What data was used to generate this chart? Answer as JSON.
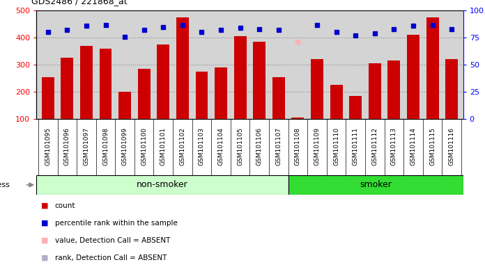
{
  "title": "GDS2486 / 221868_at",
  "samples": [
    "GSM101095",
    "GSM101096",
    "GSM101097",
    "GSM101098",
    "GSM101099",
    "GSM101100",
    "GSM101101",
    "GSM101102",
    "GSM101103",
    "GSM101104",
    "GSM101105",
    "GSM101106",
    "GSM101107",
    "GSM101108",
    "GSM101109",
    "GSM101110",
    "GSM101111",
    "GSM101112",
    "GSM101113",
    "GSM101114",
    "GSM101115",
    "GSM101116"
  ],
  "counts": [
    255,
    325,
    370,
    360,
    200,
    285,
    375,
    475,
    275,
    290,
    405,
    385,
    255,
    105,
    320,
    225,
    185,
    305,
    315,
    410,
    475,
    320
  ],
  "percentile_ranks": [
    80,
    82,
    86,
    87,
    76,
    82,
    85,
    87,
    80,
    82,
    84,
    83,
    82,
    null,
    87,
    80,
    77,
    79,
    83,
    86,
    87,
    83
  ],
  "absent_value": [
    null,
    null,
    null,
    null,
    null,
    null,
    null,
    null,
    null,
    null,
    null,
    null,
    null,
    385,
    null,
    null,
    null,
    null,
    null,
    null,
    null,
    null
  ],
  "absent_rank": [
    null,
    null,
    null,
    null,
    null,
    null,
    null,
    null,
    null,
    null,
    null,
    null,
    null,
    null,
    null,
    null,
    null,
    null,
    null,
    null,
    null,
    null
  ],
  "non_smoker_count": 13,
  "left_ylim": [
    100,
    500
  ],
  "right_ylim": [
    0,
    100
  ],
  "left_yticks": [
    100,
    200,
    300,
    400,
    500
  ],
  "right_yticks": [
    0,
    25,
    50,
    75,
    100
  ],
  "bar_color": "#cc0000",
  "dot_color": "#0000cc",
  "absent_value_color": "#ffb0b0",
  "absent_rank_color": "#b0b0cc",
  "non_smoker_bg": "#ccffcc",
  "smoker_bg": "#33dd33",
  "axis_bg": "#d4d4d4",
  "label_bg": "#d4d4d4",
  "grid_color": "#888888",
  "bar_width": 0.65,
  "fig_bg": "#ffffff"
}
